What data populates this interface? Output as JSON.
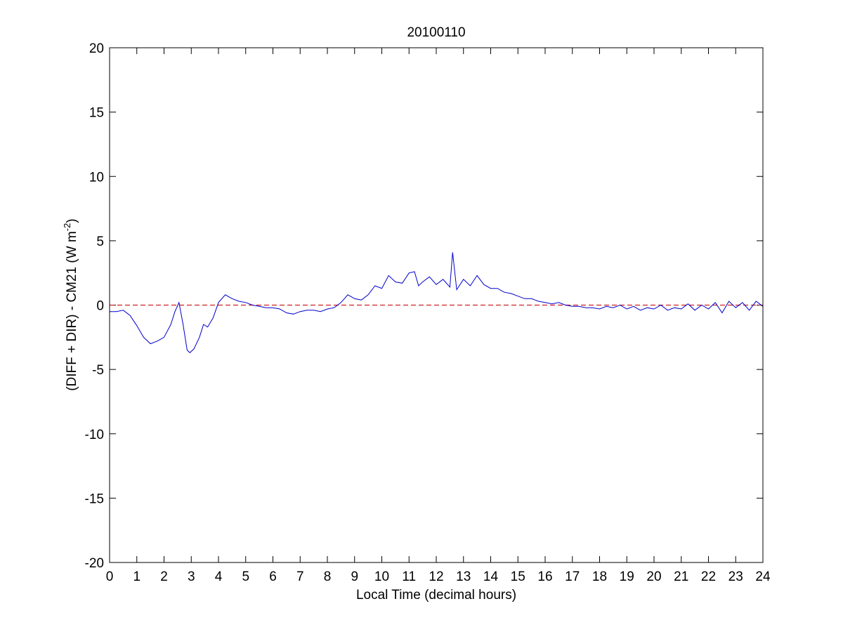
{
  "chart_data": {
    "type": "line",
    "title": "20100110",
    "xlabel": "Local Time (decimal hours)",
    "ylabel": "(DIFF + DIR) - CM21 (W m",
    "ylabel_superscript": "-2",
    "ylabel_suffix": ")",
    "xlim": [
      0,
      24
    ],
    "ylim": [
      -20,
      20
    ],
    "xticks": [
      0,
      1,
      2,
      3,
      4,
      5,
      6,
      7,
      8,
      9,
      10,
      11,
      12,
      13,
      14,
      15,
      16,
      17,
      18,
      19,
      20,
      21,
      22,
      23,
      24
    ],
    "yticks": [
      -20,
      -15,
      -10,
      -5,
      0,
      5,
      10,
      15,
      20
    ],
    "grid": false,
    "reference_line": {
      "y": 0,
      "style": "dashed",
      "color": "#cc2222"
    },
    "series": [
      {
        "color": "#0000cc",
        "x": [
          0,
          0.25,
          0.5,
          0.75,
          1.0,
          1.25,
          1.5,
          1.75,
          2.0,
          2.25,
          2.4,
          2.55,
          2.7,
          2.85,
          2.95,
          3.1,
          3.3,
          3.45,
          3.6,
          3.8,
          4.0,
          4.25,
          4.5,
          4.75,
          5.0,
          5.25,
          5.5,
          5.75,
          6.0,
          6.25,
          6.5,
          6.75,
          7.0,
          7.25,
          7.5,
          7.75,
          8.0,
          8.25,
          8.5,
          8.75,
          9.0,
          9.25,
          9.5,
          9.75,
          10.0,
          10.25,
          10.5,
          10.75,
          11.0,
          11.2,
          11.35,
          11.5,
          11.75,
          12.0,
          12.25,
          12.5,
          12.6,
          12.75,
          13.0,
          13.25,
          13.5,
          13.75,
          14.0,
          14.25,
          14.5,
          14.75,
          15.0,
          15.25,
          15.5,
          15.75,
          16.0,
          16.25,
          16.5,
          16.75,
          17.0,
          17.25,
          17.5,
          17.75,
          18.0,
          18.25,
          18.5,
          18.75,
          19.0,
          19.25,
          19.5,
          19.75,
          20.0,
          20.25,
          20.5,
          20.75,
          21.0,
          21.25,
          21.5,
          21.75,
          22.0,
          22.25,
          22.5,
          22.75,
          23.0,
          23.25,
          23.5,
          23.75,
          24.0
        ],
        "y": [
          -0.5,
          -0.5,
          -0.4,
          -0.8,
          -1.6,
          -2.5,
          -3.0,
          -2.8,
          -2.5,
          -1.5,
          -0.5,
          0.2,
          -1.5,
          -3.5,
          -3.7,
          -3.4,
          -2.5,
          -1.5,
          -1.7,
          -1.0,
          0.2,
          0.8,
          0.5,
          0.3,
          0.2,
          0.0,
          -0.1,
          -0.2,
          -0.2,
          -0.3,
          -0.6,
          -0.7,
          -0.5,
          -0.4,
          -0.4,
          -0.5,
          -0.3,
          -0.2,
          0.2,
          0.8,
          0.5,
          0.4,
          0.8,
          1.5,
          1.3,
          2.3,
          1.8,
          1.7,
          2.5,
          2.6,
          1.5,
          1.8,
          2.2,
          1.6,
          2.0,
          1.4,
          4.1,
          1.2,
          2.0,
          1.5,
          2.3,
          1.6,
          1.3,
          1.3,
          1.0,
          0.9,
          0.7,
          0.5,
          0.5,
          0.3,
          0.2,
          0.1,
          0.2,
          0.0,
          -0.1,
          -0.1,
          -0.2,
          -0.2,
          -0.3,
          -0.1,
          -0.2,
          0.0,
          -0.3,
          -0.1,
          -0.4,
          -0.2,
          -0.3,
          0.0,
          -0.4,
          -0.2,
          -0.3,
          0.1,
          -0.4,
          0.0,
          -0.3,
          0.2,
          -0.6,
          0.3,
          -0.2,
          0.2,
          -0.4,
          0.3,
          -0.1
        ]
      }
    ]
  }
}
